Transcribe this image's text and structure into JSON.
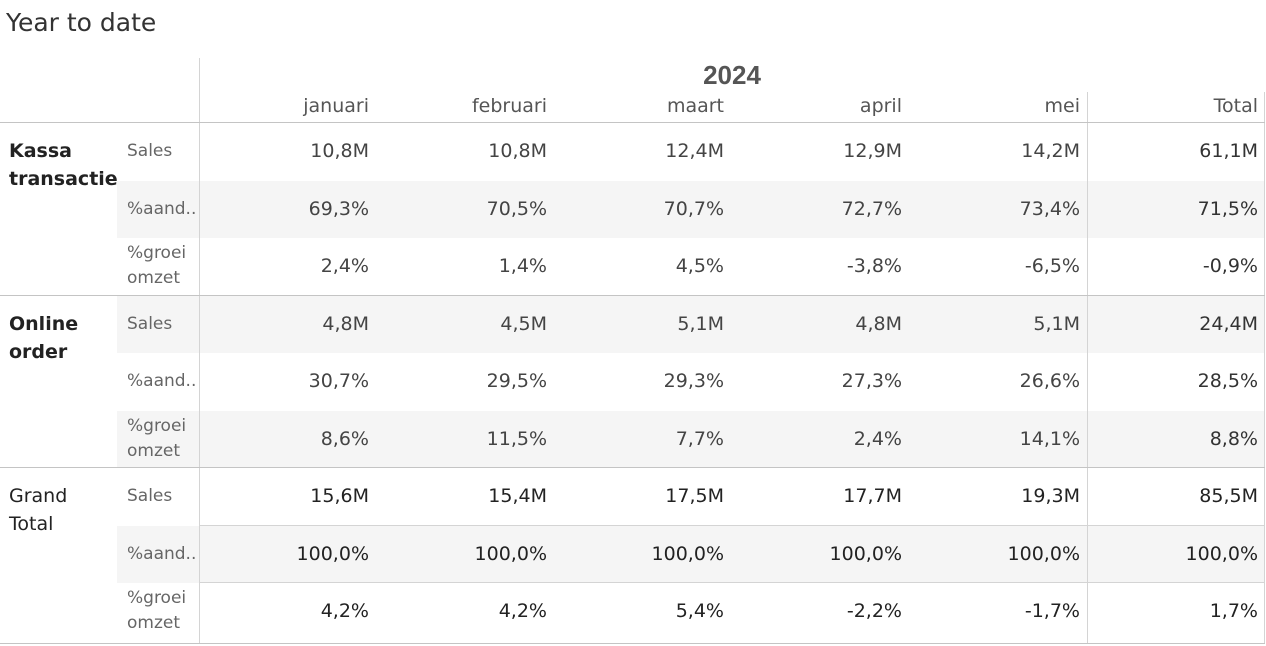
{
  "title": "Year to date",
  "year": "2024",
  "columns": [
    "januari",
    "februari",
    "maart",
    "april",
    "mei",
    "Total"
  ],
  "groups": [
    {
      "label": "Kassa transactie",
      "bold": true,
      "rows": [
        {
          "measure": "Sales",
          "values": [
            "10,8M",
            "10,8M",
            "12,4M",
            "12,9M",
            "14,2M",
            "61,1M"
          ]
        },
        {
          "measure": "%aand..",
          "values": [
            "69,3%",
            "70,5%",
            "70,7%",
            "72,7%",
            "73,4%",
            "71,5%"
          ]
        },
        {
          "measure": "%groei omzet",
          "values": [
            "2,4%",
            "1,4%",
            "4,5%",
            "-3,8%",
            "-6,5%",
            "-0,9%"
          ]
        }
      ]
    },
    {
      "label": "Online order",
      "bold": true,
      "rows": [
        {
          "measure": "Sales",
          "values": [
            "4,8M",
            "4,5M",
            "5,1M",
            "4,8M",
            "5,1M",
            "24,4M"
          ]
        },
        {
          "measure": "%aand..",
          "values": [
            "30,7%",
            "29,5%",
            "29,3%",
            "27,3%",
            "26,6%",
            "28,5%"
          ]
        },
        {
          "measure": "%groei omzet",
          "values": [
            "8,6%",
            "11,5%",
            "7,7%",
            "2,4%",
            "14,1%",
            "8,8%"
          ]
        }
      ]
    },
    {
      "label": "Grand Total",
      "bold": false,
      "rows": [
        {
          "measure": "Sales",
          "values": [
            "15,6M",
            "15,4M",
            "17,5M",
            "17,7M",
            "19,3M",
            "85,5M"
          ]
        },
        {
          "measure": "%aand..",
          "values": [
            "100,0%",
            "100,0%",
            "100,0%",
            "100,0%",
            "100,0%",
            "100,0%"
          ]
        },
        {
          "measure": "%groei omzet",
          "values": [
            "4,2%",
            "4,2%",
            "5,4%",
            "-2,2%",
            "-1,7%",
            "1,7%"
          ]
        }
      ]
    }
  ],
  "colors": {
    "stripe": "#f5f5f5",
    "grid": "#d4d4d4",
    "text": "#333333"
  }
}
